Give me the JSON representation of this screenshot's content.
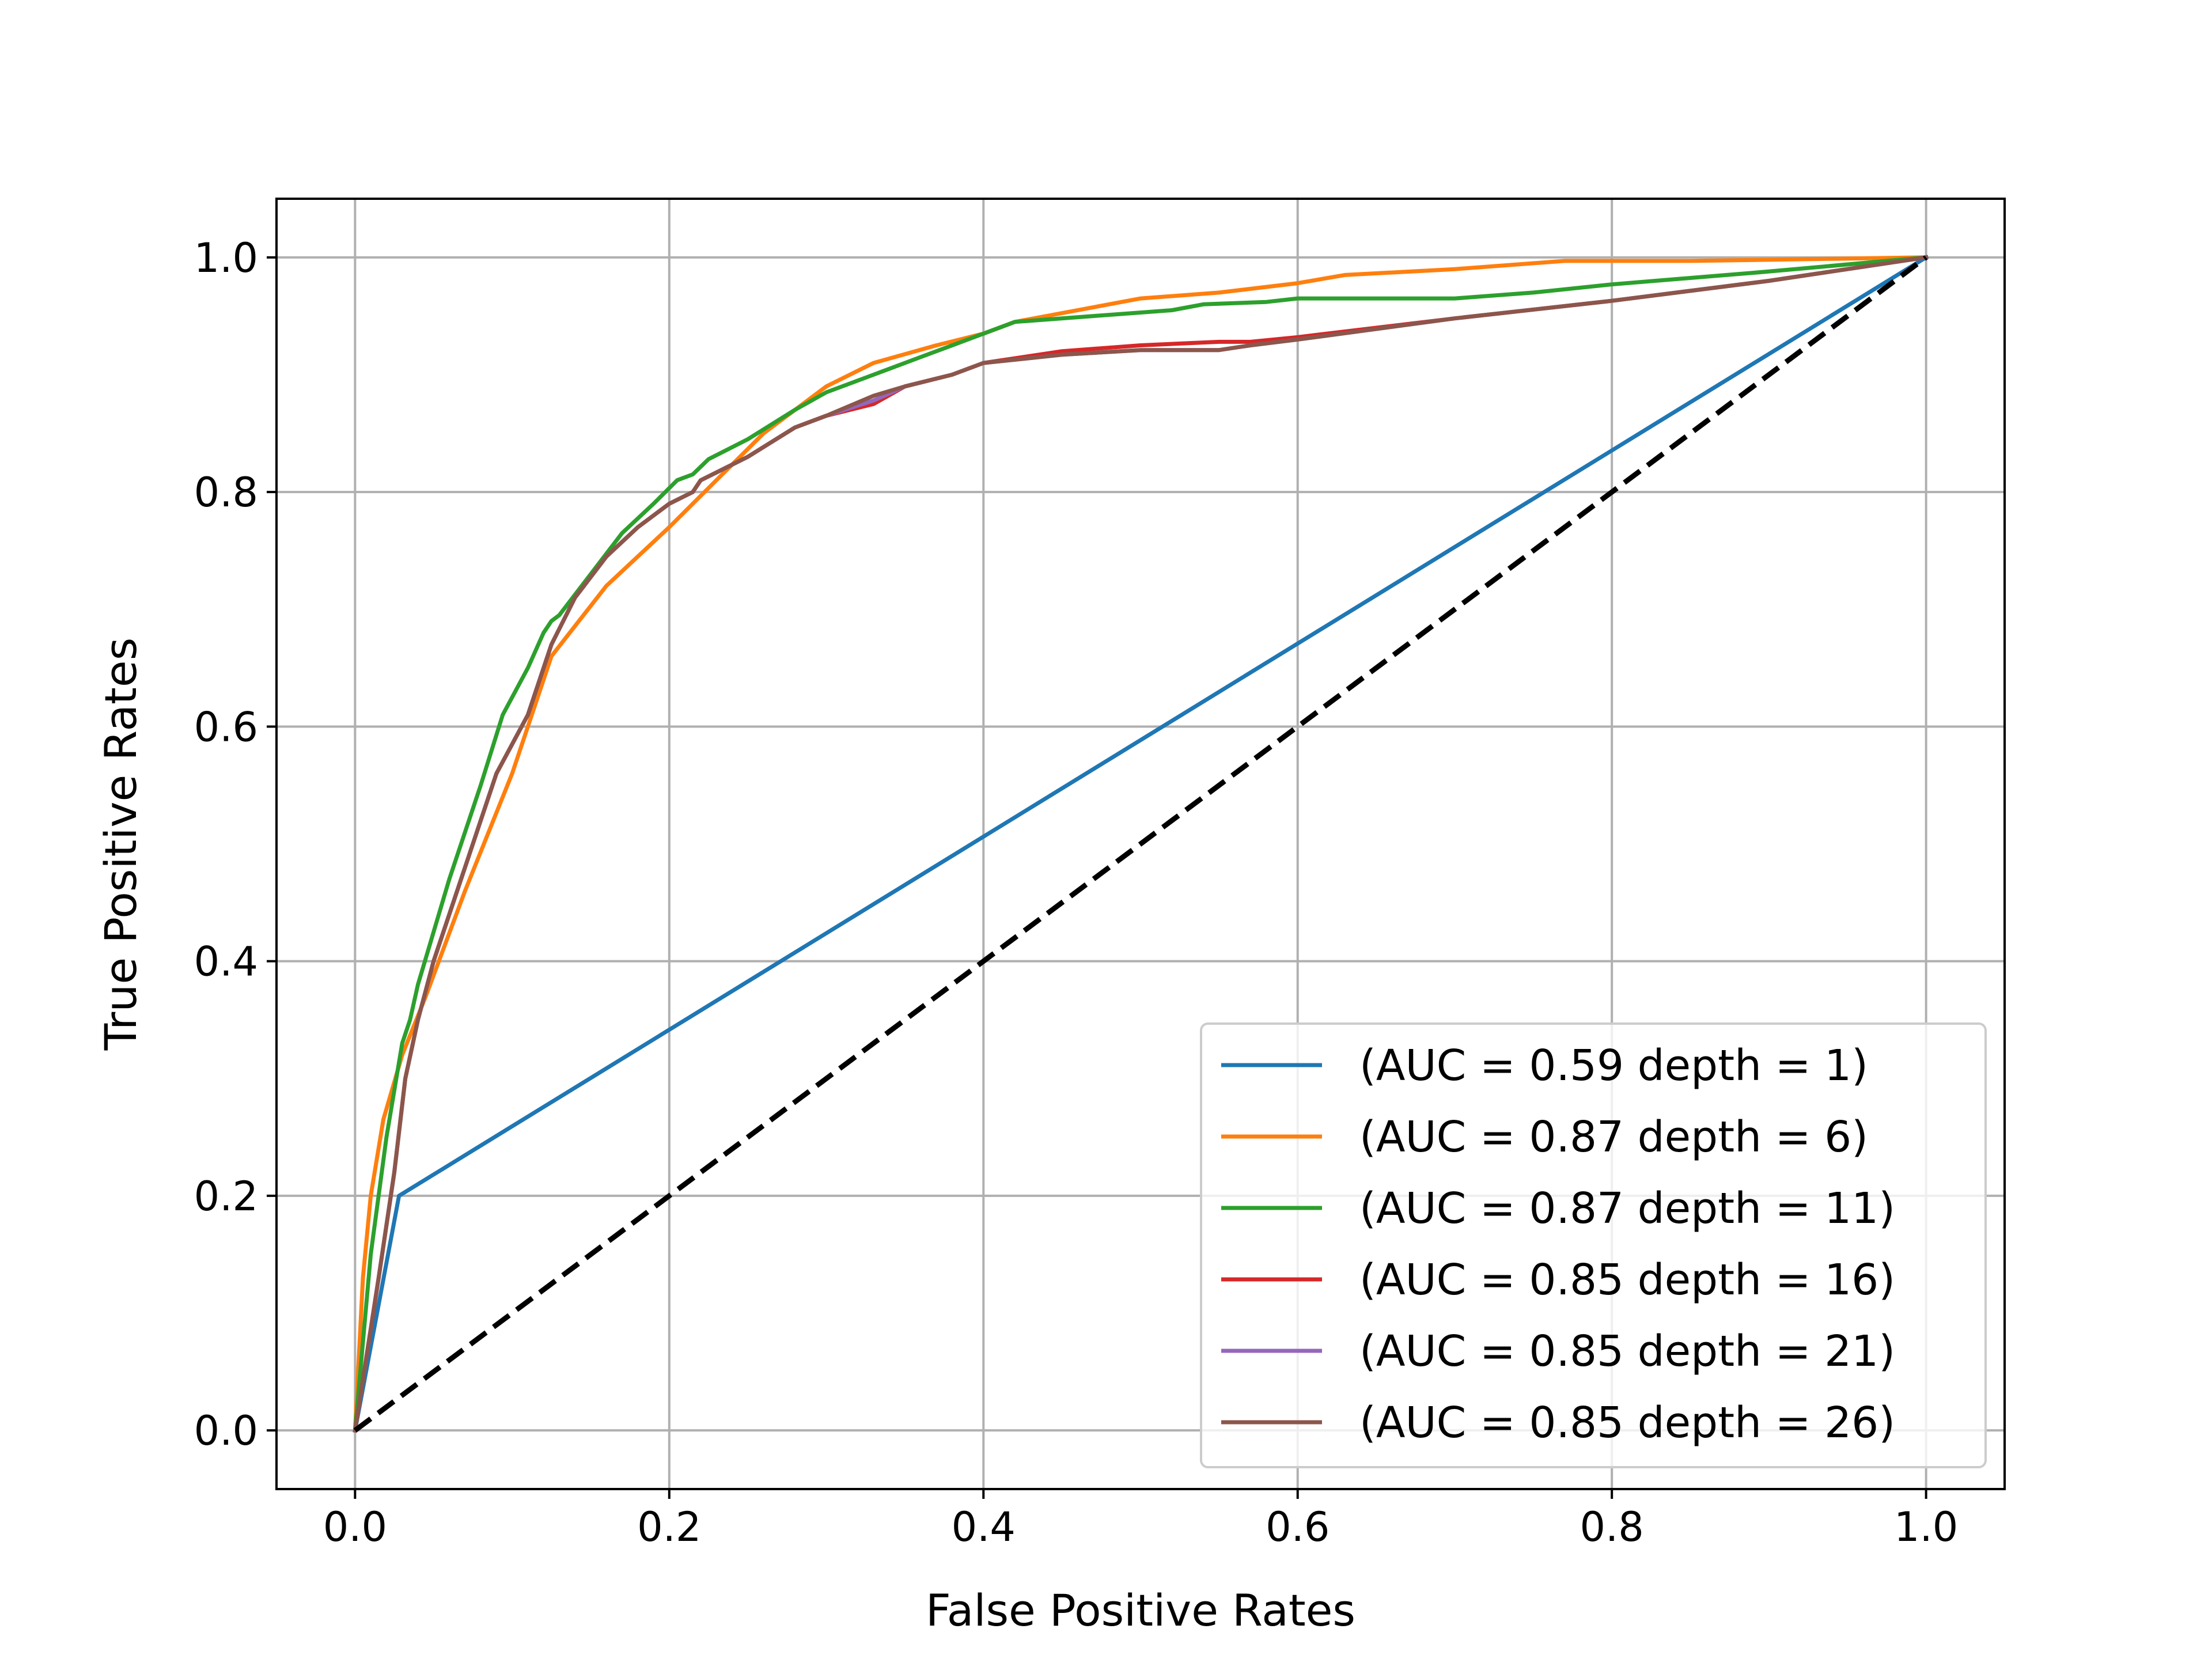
{
  "chart_data": {
    "type": "line",
    "title": "",
    "xlabel": "False Positive Rates",
    "ylabel": "True Positive Rates",
    "xlim": [
      -0.05,
      1.05
    ],
    "ylim": [
      -0.05,
      1.05
    ],
    "xticks": [
      0.0,
      0.2,
      0.4,
      0.6,
      0.8,
      1.0
    ],
    "yticks": [
      0.0,
      0.2,
      0.4,
      0.6,
      0.8,
      1.0
    ],
    "xtick_labels": [
      "0.0",
      "0.2",
      "0.4",
      "0.6",
      "0.8",
      "1.0"
    ],
    "ytick_labels": [
      "0.0",
      "0.2",
      "0.4",
      "0.6",
      "0.8",
      "1.0"
    ],
    "grid": true,
    "legend_position": "lower-right",
    "reference_line": {
      "name": "chance",
      "color": "#000000",
      "style": "dashed",
      "x": [
        0,
        1
      ],
      "y": [
        0,
        1
      ]
    },
    "series": [
      {
        "name": "(AUC = 0.59 depth = 1)",
        "color": "#1f77b4",
        "x": [
          0.0,
          0.028,
          1.0
        ],
        "y": [
          0.0,
          0.2,
          1.0
        ]
      },
      {
        "name": "(AUC = 0.87 depth = 6)",
        "color": "#ff7f0e",
        "x": [
          0.0,
          0.005,
          0.01,
          0.018,
          0.03,
          0.045,
          0.07,
          0.1,
          0.125,
          0.16,
          0.2,
          0.23,
          0.26,
          0.3,
          0.33,
          0.37,
          0.4,
          0.42,
          0.5,
          0.55,
          0.6,
          0.63,
          0.7,
          0.77,
          0.85,
          1.0
        ],
        "y": [
          0.0,
          0.13,
          0.2,
          0.265,
          0.32,
          0.37,
          0.46,
          0.56,
          0.66,
          0.72,
          0.77,
          0.81,
          0.85,
          0.89,
          0.91,
          0.925,
          0.935,
          0.945,
          0.965,
          0.97,
          0.978,
          0.985,
          0.99,
          0.997,
          0.997,
          1.0
        ]
      },
      {
        "name": "(AUC = 0.87 depth = 11)",
        "color": "#2ca02c",
        "x": [
          0.0,
          0.01,
          0.02,
          0.03,
          0.035,
          0.04,
          0.06,
          0.08,
          0.094,
          0.11,
          0.12,
          0.125,
          0.13,
          0.15,
          0.17,
          0.19,
          0.205,
          0.215,
          0.225,
          0.25,
          0.28,
          0.3,
          0.33,
          0.36,
          0.4,
          0.42,
          0.47,
          0.52,
          0.54,
          0.58,
          0.6,
          0.65,
          0.7,
          0.75,
          0.8,
          0.9,
          1.0
        ],
        "y": [
          0.0,
          0.15,
          0.25,
          0.33,
          0.35,
          0.38,
          0.47,
          0.55,
          0.61,
          0.65,
          0.68,
          0.69,
          0.695,
          0.73,
          0.765,
          0.79,
          0.81,
          0.815,
          0.828,
          0.845,
          0.87,
          0.885,
          0.9,
          0.915,
          0.935,
          0.945,
          0.95,
          0.955,
          0.96,
          0.962,
          0.965,
          0.965,
          0.965,
          0.97,
          0.977,
          0.988,
          1.0
        ]
      },
      {
        "name": "(AUC = 0.85 depth = 16)",
        "color": "#d62728",
        "x": [
          0.0,
          0.015,
          0.025,
          0.032,
          0.04,
          0.05,
          0.07,
          0.09,
          0.11,
          0.125,
          0.14,
          0.16,
          0.18,
          0.2,
          0.215,
          0.22,
          0.25,
          0.28,
          0.3,
          0.33,
          0.35,
          0.38,
          0.4,
          0.45,
          0.5,
          0.55,
          0.57,
          0.6,
          0.7,
          0.8,
          0.9,
          1.0
        ],
        "y": [
          0.0,
          0.13,
          0.22,
          0.3,
          0.35,
          0.4,
          0.48,
          0.56,
          0.61,
          0.67,
          0.71,
          0.745,
          0.77,
          0.79,
          0.8,
          0.81,
          0.83,
          0.855,
          0.865,
          0.875,
          0.89,
          0.9,
          0.91,
          0.92,
          0.925,
          0.928,
          0.928,
          0.932,
          0.948,
          0.963,
          0.98,
          1.0
        ]
      },
      {
        "name": "(AUC = 0.85 depth = 21)",
        "color": "#9467bd",
        "x": [
          0.0,
          0.015,
          0.025,
          0.032,
          0.04,
          0.05,
          0.07,
          0.09,
          0.11,
          0.125,
          0.14,
          0.16,
          0.18,
          0.2,
          0.215,
          0.22,
          0.25,
          0.28,
          0.3,
          0.33,
          0.35,
          0.38,
          0.4,
          0.45,
          0.5,
          0.55,
          0.57,
          0.6,
          0.7,
          0.8,
          0.9,
          1.0
        ],
        "y": [
          0.0,
          0.13,
          0.22,
          0.3,
          0.35,
          0.4,
          0.48,
          0.56,
          0.61,
          0.67,
          0.71,
          0.745,
          0.77,
          0.79,
          0.8,
          0.81,
          0.83,
          0.855,
          0.865,
          0.878,
          0.89,
          0.9,
          0.91,
          0.917,
          0.921,
          0.921,
          0.925,
          0.93,
          0.948,
          0.963,
          0.98,
          1.0
        ]
      },
      {
        "name": "(AUC = 0.85 depth = 26)",
        "color": "#8c564b",
        "x": [
          0.0,
          0.015,
          0.025,
          0.032,
          0.04,
          0.05,
          0.07,
          0.09,
          0.11,
          0.125,
          0.14,
          0.16,
          0.18,
          0.2,
          0.215,
          0.22,
          0.25,
          0.28,
          0.3,
          0.33,
          0.35,
          0.38,
          0.4,
          0.45,
          0.5,
          0.55,
          0.57,
          0.6,
          0.7,
          0.8,
          0.9,
          1.0
        ],
        "y": [
          0.0,
          0.13,
          0.22,
          0.3,
          0.35,
          0.4,
          0.48,
          0.56,
          0.61,
          0.67,
          0.71,
          0.745,
          0.77,
          0.79,
          0.8,
          0.81,
          0.83,
          0.855,
          0.865,
          0.882,
          0.89,
          0.9,
          0.91,
          0.917,
          0.921,
          0.921,
          0.925,
          0.93,
          0.948,
          0.963,
          0.98,
          1.0
        ]
      }
    ]
  }
}
